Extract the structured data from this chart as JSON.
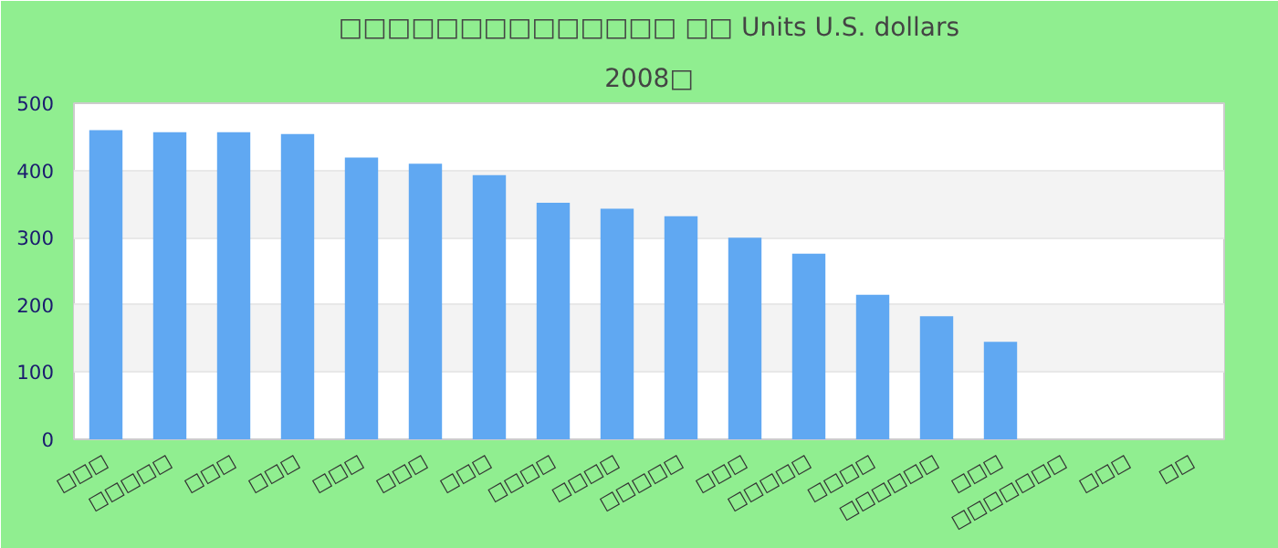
{
  "chart_data": {
    "type": "bar",
    "title": "□□□□□□□□□□□□□□ □□ Units U.S. dollars",
    "subtitle": "2008□",
    "categories": [
      "□□□",
      "□□□□□",
      "□□□",
      "□□□",
      "□□□",
      "□□□",
      "□□□",
      "□□□□",
      "□□□□",
      "□□□□□",
      "□□□",
      "□□□□□",
      "□□□□",
      "□□□□□□",
      "□□□",
      "□□□□□□□",
      "□□□",
      "□□"
    ],
    "values": [
      460,
      457,
      457,
      454,
      419,
      410,
      393,
      352,
      343,
      332,
      300,
      276,
      215,
      183,
      145,
      null,
      null,
      null
    ],
    "color": "#60a8f2",
    "ylim": [
      0,
      500
    ],
    "yticks": [
      0,
      100,
      200,
      300,
      400,
      500
    ],
    "grid": "y"
  }
}
